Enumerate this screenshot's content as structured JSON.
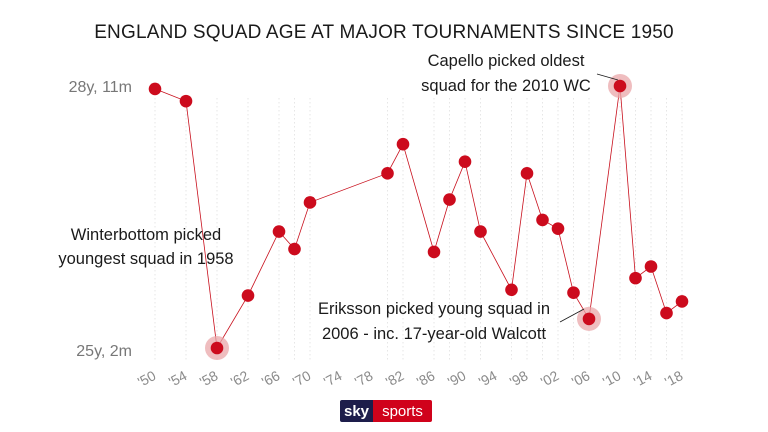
{
  "chart_data": {
    "type": "line",
    "title": "ENGLAND SQUAD AGE AT MAJOR TOURNAMENTS SINCE 1950",
    "y_tick_labels": [
      "28y, 11m",
      "25y, 2m"
    ],
    "ylim_months": [
      302,
      347
    ],
    "x_tick_labels": [
      "'50",
      "'54",
      "'58",
      "'62",
      "'66",
      "'70",
      "'74",
      "'78",
      "'82",
      "'86",
      "'90",
      "'94",
      "'98",
      "'02",
      "'06",
      "'10",
      "'14",
      "'18"
    ],
    "x_domain": [
      1950,
      2018
    ],
    "grid": "vertical dotted lines at tournament positions",
    "series": [
      {
        "points": [
          {
            "x": 1950,
            "y_months": 346.5
          },
          {
            "x": 1954,
            "y_months": 344.4
          },
          {
            "x": 1958,
            "y_months": 302.0
          },
          {
            "x": 1962,
            "y_months": 311.0
          },
          {
            "x": 1966,
            "y_months": 322.0
          },
          {
            "x": 1968,
            "y_months": 319.0
          },
          {
            "x": 1970,
            "y_months": 327.0
          },
          {
            "x": 1980,
            "y_months": 332.0
          },
          {
            "x": 1982,
            "y_months": 337.0
          },
          {
            "x": 1986,
            "y_months": 318.5
          },
          {
            "x": 1988,
            "y_months": 327.5
          },
          {
            "x": 1990,
            "y_months": 334.0
          },
          {
            "x": 1992,
            "y_months": 322.0
          },
          {
            "x": 1996,
            "y_months": 312.0
          },
          {
            "x": 1998,
            "y_months": 332.0
          },
          {
            "x": 2000,
            "y_months": 324.0
          },
          {
            "x": 2002,
            "y_months": 322.5
          },
          {
            "x": 2004,
            "y_months": 311.5
          },
          {
            "x": 2006,
            "y_months": 307.0
          },
          {
            "x": 2010,
            "y_months": 347.0
          },
          {
            "x": 2012,
            "y_months": 314.0
          },
          {
            "x": 2014,
            "y_months": 316.0
          },
          {
            "x": 2016,
            "y_months": 308.0
          },
          {
            "x": 2018,
            "y_months": 310.0
          }
        ],
        "highlighted_years": [
          1958,
          2006,
          2010
        ]
      }
    ],
    "annotations": {
      "capello": [
        "Capello picked oldest",
        "squad for the 2010 WC"
      ],
      "winterbottom": [
        "Winterbottom picked",
        "youngest squad in 1958"
      ],
      "eriksson": [
        "Eriksson picked young squad in",
        "2006 - inc. 17-year-old Walcott"
      ]
    }
  },
  "logo": {
    "left": "sky",
    "right": "sports"
  },
  "colors": {
    "point": "#cc0b1d",
    "halo": "#e9a7a9",
    "logo_navy": "#1d1d4b",
    "logo_red": "#d0021b"
  }
}
